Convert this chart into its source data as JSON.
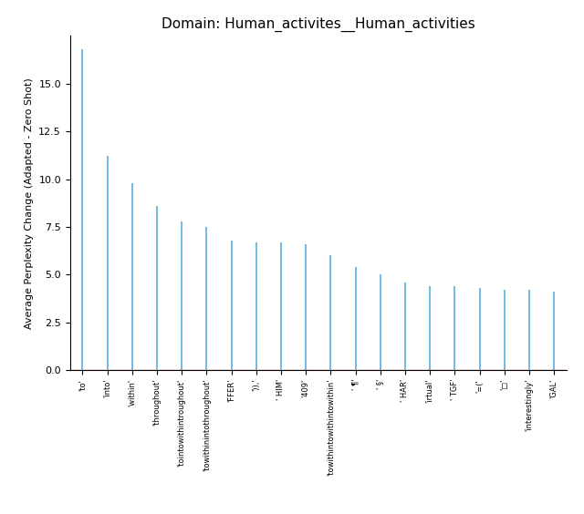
{
  "title": "Domain: Human_activites__Human_activities",
  "ylabel": "Average Perplexity Change (Adapted - Zero Shot)",
  "labels": [
    "'to'",
    "'into'",
    "'within'",
    "'throughout'",
    "'tointowithintroughout'",
    "'towithinintothroughout'",
    "'FFER'",
    "')),'",
    "' HIM'",
    "'409'",
    "'towithintowithintowithin'",
    "' ¶'",
    "' §'",
    "' HAR'",
    "'irtual'",
    "' TGF'",
    "'=('",
    "'□'",
    "'interestingly'",
    "'GAL'"
  ],
  "values": [
    16.8,
    11.2,
    9.8,
    8.6,
    7.8,
    7.5,
    6.8,
    6.7,
    6.7,
    6.6,
    6.0,
    5.4,
    5.0,
    4.6,
    4.4,
    4.4,
    4.3,
    4.2,
    4.2,
    4.1
  ],
  "line_color": "#5aafe0",
  "hline_color": "#cc4444",
  "ylim": [
    0,
    17.5
  ],
  "yticks": [
    0.0,
    2.5,
    5.0,
    7.5,
    10.0,
    12.5,
    15.0
  ],
  "figsize": [
    6.4,
    5.64
  ],
  "dpi": 100,
  "title_fontsize": 11,
  "ylabel_fontsize": 8,
  "xtick_fontsize": 6,
  "ytick_fontsize": 8
}
